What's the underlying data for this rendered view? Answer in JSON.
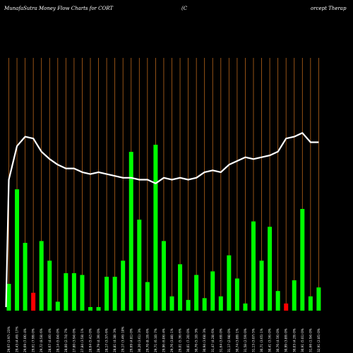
{
  "chart_data": {
    "type": "bar",
    "title_left": "MunafaSutra  Money Flow  Charts for CORT",
    "title_mid": "(C",
    "title_right": "orcept Therap",
    "colors": {
      "background": "#000000",
      "grid": "#b8651b",
      "up": "#00ff00",
      "down": "#ff0000",
      "line": "#ffffff",
      "text": "#ffffff"
    },
    "grid": true,
    "categories": [
      "29,67 (3.97) 23%",
      "29,43 (4.49) 17%",
      "29,69 (7.06) 4%",
      "29,61 (7.99) 0%",
      "29,72 (8.58) 6%",
      "28,67 (4.46) 4%",
      "28,14 (5.04) 0%",
      "28,00 (2.74) 7%",
      "27,80 (3.94) 0%",
      "27,84 (3.58) 1%",
      "28,64 (5.42) 0%",
      "28,79 (4.39) 0%",
      "28,17 (3.37) 6%",
      "28,81 (4.38) 3%",
      "29,17 (3.46) 10%",
      "29,69 (4.81) 0%",
      "30,20 (3.61) 3%",
      "29,70 (8.19) 6%",
      "29,71 (6.10) 7%",
      "29,96 (6.06) 4%",
      "29,76 (3.80) 1%",
      "29,01 (5.36) 6%",
      "30,01 (7.20) 0%",
      "30,76 (5.10) 3%",
      "30,94 (3.68) 3%",
      "31,47 (4.28) 6%",
      "31,64 (3.69) 0%",
      "31,17 (2.98) 0%",
      "30,74 (3.89) 1%",
      "31,58 (2.59) 0%",
      "31,13 (3.07) 5%",
      "30,71 (3.65) 1%",
      "30,41 (3.56) 0%",
      "30,76 (4.56) 0%",
      "30,99 (3.89) 0%",
      "30,03 (4.29) 0%",
      "30,91 (5.01) 0%",
      "31,66 (1.94) 0%",
      "32,91 (2.85) 0%"
    ],
    "values": [
      15,
      68,
      38,
      -10,
      39,
      28,
      5,
      21,
      21,
      20,
      2,
      2,
      19,
      19,
      28,
      89,
      51,
      16,
      93,
      39,
      8,
      26,
      6,
      20,
      7,
      22,
      8,
      31,
      18,
      4,
      50,
      28,
      47,
      11,
      -4,
      17,
      57,
      8,
      13
    ],
    "line_values": [
      0.3,
      0.3,
      0.3,
      0.3,
      0.3,
      0.3,
      0.3,
      0.3,
      0.3,
      0.3,
      0.3,
      0.3,
      0.3,
      0.3,
      0.3,
      0.3,
      0.3,
      0.3,
      0.3,
      0.3,
      0.3,
      0.3,
      0.3,
      0.3,
      0.3,
      0.3,
      0.3,
      0.3,
      0.3,
      0.3,
      0.3,
      0.3,
      0.3,
      0.3,
      0.3,
      0.3,
      0.3,
      0.3,
      0.3
    ],
    "line": [
      70,
      88,
      93,
      92,
      85,
      81,
      78,
      76,
      76,
      74,
      73,
      74,
      73,
      72,
      71,
      71,
      70,
      70,
      68,
      71,
      70,
      71,
      70,
      71,
      74,
      75,
      74,
      78,
      80,
      82,
      81,
      82,
      83,
      85,
      92,
      93,
      95,
      90,
      90
    ]
  }
}
